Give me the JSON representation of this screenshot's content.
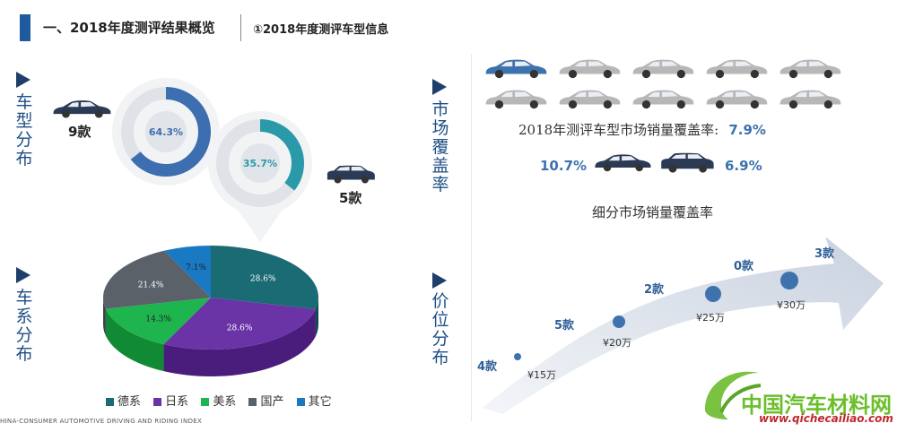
{
  "header": {
    "title": "一、2018年度测评结果概览",
    "subtitle": "①2018年度测评车型信息"
  },
  "sections": {
    "car_type": "车型分布",
    "market": "市场覆盖率",
    "series": "车系分布",
    "price": "价位分布"
  },
  "car_type": {
    "sedan_count": "9款",
    "suv_count": "5款",
    "sedan_pct_label": "64.3%",
    "suv_pct_label": "35.7%",
    "sedan_pct": 64.3,
    "suv_pct": 35.7
  },
  "market": {
    "coverage_label": "2018年测评车型市场销量覆盖率:",
    "coverage_value": "7.9%",
    "sedan_value": "10.7%",
    "suv_value": "6.9%",
    "segment_label": "细分市场销量覆盖率"
  },
  "price": {
    "counts": [
      "4款",
      "5款",
      "2款",
      "0款",
      "3款"
    ],
    "prices": [
      "¥15万",
      "¥20万",
      "¥25万",
      "¥30万"
    ]
  },
  "chart_data": {
    "type": "pie",
    "categories": [
      "德系",
      "日系",
      "美系",
      "国产",
      "其它"
    ],
    "values": [
      28.6,
      28.6,
      14.3,
      21.4,
      7.1
    ],
    "value_labels": [
      "28.6%",
      "28.6%",
      "14.3%",
      "21.4%",
      "7.1%"
    ],
    "legend_position": "bottom",
    "colors": [
      "#1a6b73",
      "#6a33a6",
      "#1fb54e",
      "#5a6169",
      "#1979c2"
    ],
    "side_colors": [
      "#0f4a51",
      "#4a1d7d",
      "#118a36",
      "#3c4248",
      "#115a94"
    ]
  },
  "footer": {
    "text": "HINA-CONSUMER AUTOMOTIVE DRIVING AND RIDING INDEX"
  },
  "watermark": {
    "title": "中国汽车材料网",
    "url": "www.qichecailiao.com"
  },
  "colors": {
    "accent": "#1f5a9e",
    "sedan_ring": "#3c6eb0",
    "suv_ring": "#2a9aaa",
    "car_gray": "#b7b7b7",
    "car_blue": "#3e72ad",
    "car_dark": "#2b3a55"
  }
}
